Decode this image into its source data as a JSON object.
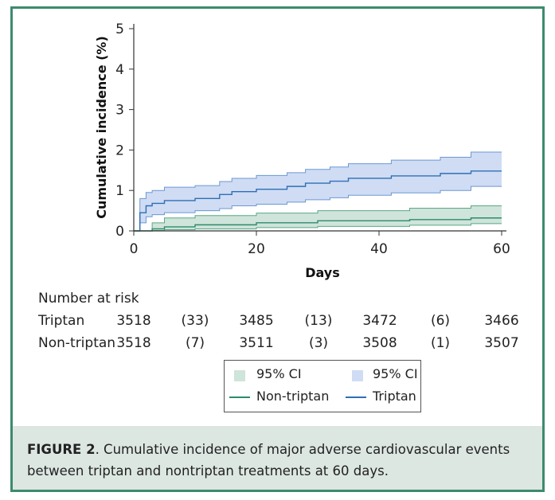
{
  "chart_data": {
    "type": "line",
    "xlabel": "Days",
    "ylabel": "Cumulative incidence (%)",
    "xlim": [
      0,
      60
    ],
    "ylim": [
      0,
      5
    ],
    "x_ticks": [
      "0",
      "20",
      "40",
      "60"
    ],
    "y_ticks": [
      "0",
      "1",
      "2",
      "3",
      "4",
      "5"
    ],
    "series": [
      {
        "name": "Triptan",
        "color": "#2e6fb5",
        "x": [
          0,
          1,
          1,
          2,
          2,
          3,
          3,
          5,
          5,
          10,
          10,
          14,
          14,
          16,
          16,
          20,
          20,
          25,
          25,
          28,
          28,
          32,
          32,
          35,
          35,
          42,
          42,
          50,
          50,
          55,
          55,
          60
        ],
        "y": [
          0,
          0,
          0.45,
          0.45,
          0.62,
          0.62,
          0.68,
          0.68,
          0.75,
          0.75,
          0.8,
          0.8,
          0.9,
          0.9,
          0.97,
          0.97,
          1.03,
          1.03,
          1.1,
          1.1,
          1.18,
          1.18,
          1.23,
          1.23,
          1.3,
          1.3,
          1.36,
          1.36,
          1.42,
          1.42,
          1.48,
          1.48
        ]
      },
      {
        "name": "Non-triptan",
        "color": "#2e8b6e",
        "x": [
          0,
          3,
          3,
          5,
          5,
          10,
          10,
          20,
          20,
          30,
          30,
          45,
          45,
          55,
          55,
          60
        ],
        "y": [
          0,
          0,
          0.05,
          0.05,
          0.1,
          0.1,
          0.15,
          0.15,
          0.2,
          0.2,
          0.25,
          0.25,
          0.28,
          0.28,
          0.32,
          0.32
        ]
      }
    ],
    "ci_bands": [
      {
        "name": "95% CI",
        "of": "Triptan",
        "color": "#cfdcf4",
        "edge": "#6c98d2",
        "x": [
          0,
          1,
          1,
          2,
          2,
          3,
          3,
          5,
          5,
          10,
          10,
          14,
          14,
          16,
          16,
          20,
          20,
          25,
          25,
          28,
          28,
          32,
          32,
          35,
          35,
          42,
          42,
          50,
          50,
          55,
          55,
          60
        ],
        "lower": [
          0,
          0,
          0.2,
          0.2,
          0.35,
          0.35,
          0.4,
          0.4,
          0.45,
          0.45,
          0.5,
          0.5,
          0.55,
          0.55,
          0.62,
          0.62,
          0.66,
          0.66,
          0.71,
          0.71,
          0.77,
          0.77,
          0.82,
          0.82,
          0.88,
          0.88,
          0.94,
          0.94,
          1.0,
          1.0,
          1.1,
          1.1
        ],
        "upper": [
          0,
          0,
          0.8,
          0.8,
          0.95,
          0.95,
          1.0,
          1.0,
          1.08,
          1.08,
          1.12,
          1.12,
          1.22,
          1.22,
          1.3,
          1.3,
          1.37,
          1.37,
          1.44,
          1.44,
          1.52,
          1.52,
          1.58,
          1.58,
          1.66,
          1.66,
          1.75,
          1.75,
          1.82,
          1.82,
          1.95,
          1.95
        ]
      },
      {
        "name": "95% CI",
        "of": "Non-triptan",
        "color": "#cfe4da",
        "edge": "#5aa886",
        "x": [
          0,
          3,
          3,
          5,
          5,
          10,
          10,
          20,
          20,
          30,
          30,
          45,
          45,
          55,
          55,
          60
        ],
        "lower": [
          0,
          0,
          0.01,
          0.01,
          0.03,
          0.03,
          0.05,
          0.05,
          0.08,
          0.08,
          0.11,
          0.11,
          0.14,
          0.14,
          0.18,
          0.18
        ],
        "upper": [
          0,
          0,
          0.2,
          0.2,
          0.32,
          0.32,
          0.38,
          0.38,
          0.44,
          0.44,
          0.5,
          0.5,
          0.56,
          0.56,
          0.62,
          0.62
        ]
      }
    ]
  },
  "risk_table": {
    "title": "Number at risk",
    "rows": [
      {
        "label": "Triptan",
        "cells": [
          "3518",
          "(33)",
          "3485",
          "(13)",
          "3472",
          "(6)",
          "3466"
        ]
      },
      {
        "label": "Non-triptan",
        "cells": [
          "3518",
          "(7)",
          "3511",
          "(3)",
          "3508",
          "(1)",
          "3507"
        ]
      }
    ]
  },
  "legend": {
    "ci_green_label": "95% CI",
    "ci_blue_label": "95% CI",
    "non_triptan_label": "Non-triptan",
    "triptan_label": "Triptan"
  },
  "caption": {
    "figure_label": "FIGURE 2",
    "text": ". Cumulative incidence of major adverse cardiovascular events between triptan and nontriptan treatments at 60 days."
  },
  "colors": {
    "frame": "#3d8b6e",
    "caption_bg": "#dde7e2"
  }
}
